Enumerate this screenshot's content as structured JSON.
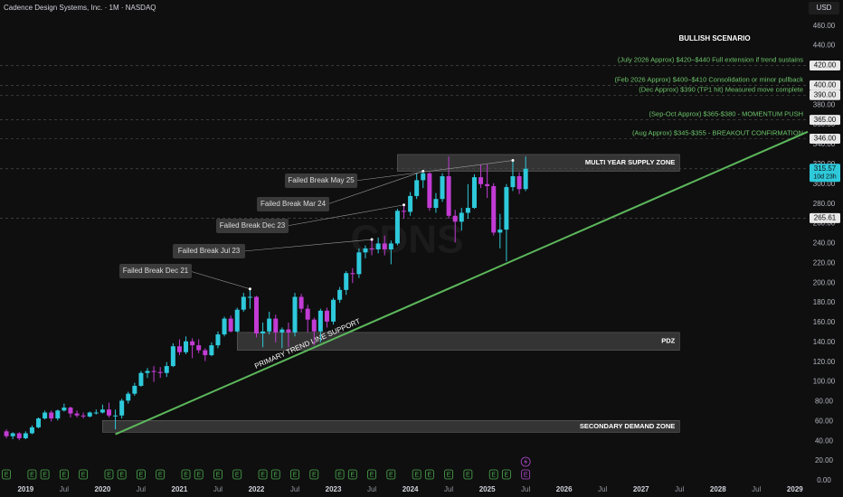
{
  "chart_data": {
    "type": "candlestick",
    "title": "Cadence Design Systems, Inc. · 1M · NASDAQ",
    "currency": "USD",
    "watermark": "CDNS",
    "scenario_title": "BULLISH SCENARIO",
    "up_color": "#2ec9db",
    "down_color": "#c23bd4",
    "xlim": [
      "2018-09",
      "2029-03"
    ],
    "ylim": [
      0,
      473
    ],
    "xticks": [
      {
        "value": "2019-01",
        "label": "2019"
      },
      {
        "value": "2019-07",
        "label": "Jul"
      },
      {
        "value": "2020-01",
        "label": "2020"
      },
      {
        "value": "2020-07",
        "label": "Jul"
      },
      {
        "value": "2021-01",
        "label": "2021"
      },
      {
        "value": "2021-07",
        "label": "Jul"
      },
      {
        "value": "2022-01",
        "label": "2022"
      },
      {
        "value": "2022-07",
        "label": "Jul"
      },
      {
        "value": "2023-01",
        "label": "2023"
      },
      {
        "value": "2023-07",
        "label": "Jul"
      },
      {
        "value": "2024-01",
        "label": "2024"
      },
      {
        "value": "2024-07",
        "label": "Jul"
      },
      {
        "value": "2025-01",
        "label": "2025"
      },
      {
        "value": "2025-07",
        "label": "Jul"
      },
      {
        "value": "2026-01",
        "label": "2026"
      },
      {
        "value": "2026-07",
        "label": "Jul"
      },
      {
        "value": "2027-01",
        "label": "2027"
      },
      {
        "value": "2027-07",
        "label": "Jul"
      },
      {
        "value": "2028-01",
        "label": "2028"
      },
      {
        "value": "2028-07",
        "label": "Jul"
      },
      {
        "value": "2029-01",
        "label": "2029"
      }
    ],
    "yticks": [
      {
        "value": 0,
        "label": "0.00"
      },
      {
        "value": 20,
        "label": "20.00"
      },
      {
        "value": 40,
        "label": "40.00"
      },
      {
        "value": 60,
        "label": "60.00"
      },
      {
        "value": 80,
        "label": "80.00"
      },
      {
        "value": 100,
        "label": "100.00"
      },
      {
        "value": 120,
        "label": "120.00"
      },
      {
        "value": 140,
        "label": "140.00"
      },
      {
        "value": 160,
        "label": "160.00"
      },
      {
        "value": 180,
        "label": "180.00"
      },
      {
        "value": 200,
        "label": "200.00"
      },
      {
        "value": 220,
        "label": "220.00"
      },
      {
        "value": 240,
        "label": "240.00"
      },
      {
        "value": 260,
        "label": "260.00"
      },
      {
        "value": 280,
        "label": "280.00"
      },
      {
        "value": 300,
        "label": "300.00"
      },
      {
        "value": 320,
        "label": "320.00"
      },
      {
        "value": 340,
        "label": "340.00"
      },
      {
        "value": 360,
        "label": "360.00"
      },
      {
        "value": 380,
        "label": "380.00"
      },
      {
        "value": 400,
        "label": "400.00"
      },
      {
        "value": 420,
        "label": "420.00"
      },
      {
        "value": 440,
        "label": "440.00"
      },
      {
        "value": 460,
        "label": "460.00"
      }
    ],
    "x": [
      "2018-10",
      "2018-11",
      "2018-12",
      "2019-01",
      "2019-02",
      "2019-03",
      "2019-04",
      "2019-05",
      "2019-06",
      "2019-07",
      "2019-08",
      "2019-09",
      "2019-10",
      "2019-11",
      "2019-12",
      "2020-01",
      "2020-02",
      "2020-03",
      "2020-04",
      "2020-05",
      "2020-06",
      "2020-07",
      "2020-08",
      "2020-09",
      "2020-10",
      "2020-11",
      "2020-12",
      "2021-01",
      "2021-02",
      "2021-03",
      "2021-04",
      "2021-05",
      "2021-06",
      "2021-07",
      "2021-08",
      "2021-09",
      "2021-10",
      "2021-11",
      "2021-12",
      "2022-01",
      "2022-02",
      "2022-03",
      "2022-04",
      "2022-05",
      "2022-06",
      "2022-07",
      "2022-08",
      "2022-09",
      "2022-10",
      "2022-11",
      "2022-12",
      "2023-01",
      "2023-02",
      "2023-03",
      "2023-04",
      "2023-05",
      "2023-06",
      "2023-07",
      "2023-08",
      "2023-09",
      "2023-10",
      "2023-11",
      "2023-12",
      "2024-01",
      "2024-02",
      "2024-03",
      "2024-04",
      "2024-05",
      "2024-06",
      "2024-07",
      "2024-08",
      "2024-09",
      "2024-10",
      "2024-11",
      "2024-12",
      "2025-01",
      "2025-02",
      "2025-03",
      "2025-04",
      "2025-05",
      "2025-06",
      "2025-07"
    ],
    "open": [
      50,
      45,
      48,
      43,
      48,
      54,
      63,
      69,
      63,
      71,
      74,
      68,
      66,
      65,
      69,
      69,
      72,
      66,
      66,
      81,
      88,
      96,
      109,
      111,
      110,
      109,
      116,
      136,
      130,
      141,
      137,
      132,
      127,
      137,
      148,
      164,
      151,
      173,
      186,
      186,
      149,
      151,
      164,
      150,
      153,
      150,
      186,
      174,
      163,
      151,
      172,
      161,
      183,
      193,
      210,
      209,
      231,
      235,
      234,
      240,
      234,
      240,
      273,
      272,
      288,
      304,
      311,
      276,
      285,
      308,
      268,
      262,
      271,
      276,
      307,
      300,
      298,
      251,
      254,
      297,
      308,
      295
    ],
    "high": [
      52,
      49,
      49,
      50,
      56,
      64,
      71,
      71,
      72,
      78,
      75,
      71,
      69,
      70,
      72,
      77,
      79,
      72,
      83,
      90,
      99,
      111,
      114,
      116,
      115,
      120,
      139,
      143,
      146,
      144,
      143,
      134,
      140,
      151,
      166,
      167,
      175,
      190,
      194,
      187,
      160,
      171,
      168,
      155,
      160,
      190,
      189,
      178,
      165,
      174,
      175,
      185,
      196,
      212,
      215,
      235,
      238,
      244,
      246,
      248,
      243,
      275,
      279,
      292,
      311,
      313,
      312,
      291,
      311,
      328,
      274,
      276,
      300,
      310,
      320,
      320,
      301,
      270,
      300,
      324,
      312,
      328
    ],
    "low": [
      43,
      42,
      41,
      42,
      47,
      53,
      62,
      60,
      61,
      70,
      64,
      64,
      63,
      64,
      67,
      68,
      64,
      52,
      63,
      78,
      86,
      95,
      104,
      100,
      104,
      105,
      115,
      127,
      128,
      124,
      129,
      121,
      126,
      134,
      146,
      150,
      150,
      171,
      174,
      145,
      135,
      148,
      140,
      134,
      135,
      146,
      170,
      150,
      137,
      140,
      155,
      158,
      180,
      188,
      200,
      205,
      225,
      228,
      230,
      228,
      219,
      238,
      265,
      268,
      285,
      296,
      273,
      271,
      282,
      265,
      241,
      253,
      265,
      275,
      296,
      286,
      248,
      235,
      222,
      293,
      290,
      293
    ],
    "close": [
      45,
      48,
      43,
      48,
      54,
      63,
      69,
      63,
      71,
      74,
      68,
      66,
      65,
      69,
      69,
      72,
      66,
      66,
      81,
      88,
      96,
      109,
      111,
      110,
      109,
      116,
      136,
      130,
      141,
      137,
      132,
      127,
      137,
      148,
      164,
      151,
      173,
      186,
      186,
      149,
      151,
      164,
      150,
      153,
      150,
      186,
      174,
      163,
      151,
      172,
      161,
      183,
      193,
      210,
      209,
      231,
      235,
      234,
      240,
      234,
      240,
      273,
      272,
      288,
      304,
      311,
      276,
      285,
      308,
      268,
      262,
      271,
      276,
      307,
      300,
      298,
      251,
      254,
      297,
      308,
      295,
      315.57
    ],
    "levels": [
      {
        "value": 420,
        "label": "420.00",
        "note": "(July 2026 Approx) $420–$440 Full extension if trend sustains"
      },
      {
        "value": 400,
        "label": "400.00",
        "note": "(Feb 2026 Approx) $400–$410 Consolidation or minor pullback"
      },
      {
        "value": 390,
        "label": "390.00",
        "note": "(Dec Approx) $390 (TP1 hit) Measured move complete"
      },
      {
        "value": 365,
        "label": "365.00",
        "note": "(Sep-Oct Approx) $365-$380 - MOMENTUM PUSH"
      },
      {
        "value": 346,
        "label": "346.00",
        "note": "(Aug Approx) $345-$355 - BREAKOUT CONFIRMATION"
      },
      {
        "value": 315.57,
        "label": "315.57",
        "sub": "10d 23h",
        "current": true
      },
      {
        "value": 265.61,
        "label": "265.61"
      }
    ],
    "zones": [
      {
        "label": "MULTI YEAR SUPPLY ZONE",
        "top": 330,
        "bottom": 313,
        "start": "2023-11",
        "end": "2027-07"
      },
      {
        "label": "PDZ",
        "top": 150,
        "bottom": 132,
        "start": "2021-10",
        "end": "2027-07"
      },
      {
        "label": "SECONDARY DEMAND ZONE",
        "top": 61,
        "bottom": 49,
        "start": "2020-01",
        "end": "2027-07"
      }
    ],
    "trendline": {
      "label": "PRIMARY TREND LINE SUPPORT",
      "color": "#5cb85c",
      "start": {
        "x": "2020-03",
        "y": 47
      },
      "end": {
        "x": "2029-03",
        "y": 353
      }
    },
    "failed_breaks": [
      {
        "label": "Failed Break Dec 21",
        "x": "2021-12",
        "y": 194
      },
      {
        "label": "Failed Break Jul 23",
        "x": "2023-07",
        "y": 244
      },
      {
        "label": "Failed Break Dec 23",
        "x": "2023-12",
        "y": 279
      },
      {
        "label": "Failed Break Mar 24",
        "x": "2024-03",
        "y": 313
      },
      {
        "label": "Failed Break May 25",
        "x": "2025-05",
        "y": 324
      }
    ],
    "earnings_label": "E",
    "earnings": [
      "2018-10",
      "2019-02",
      "2019-04",
      "2019-07",
      "2019-10",
      "2020-02",
      "2020-04",
      "2020-07",
      "2020-10",
      "2021-02",
      "2021-04",
      "2021-07",
      "2021-10",
      "2022-02",
      "2022-04",
      "2022-07",
      "2022-10",
      "2023-02",
      "2023-04",
      "2023-07",
      "2023-10",
      "2024-02",
      "2024-04",
      "2024-07",
      "2024-10",
      "2025-02",
      "2025-04"
    ],
    "upcoming_earnings": "2025-07"
  }
}
